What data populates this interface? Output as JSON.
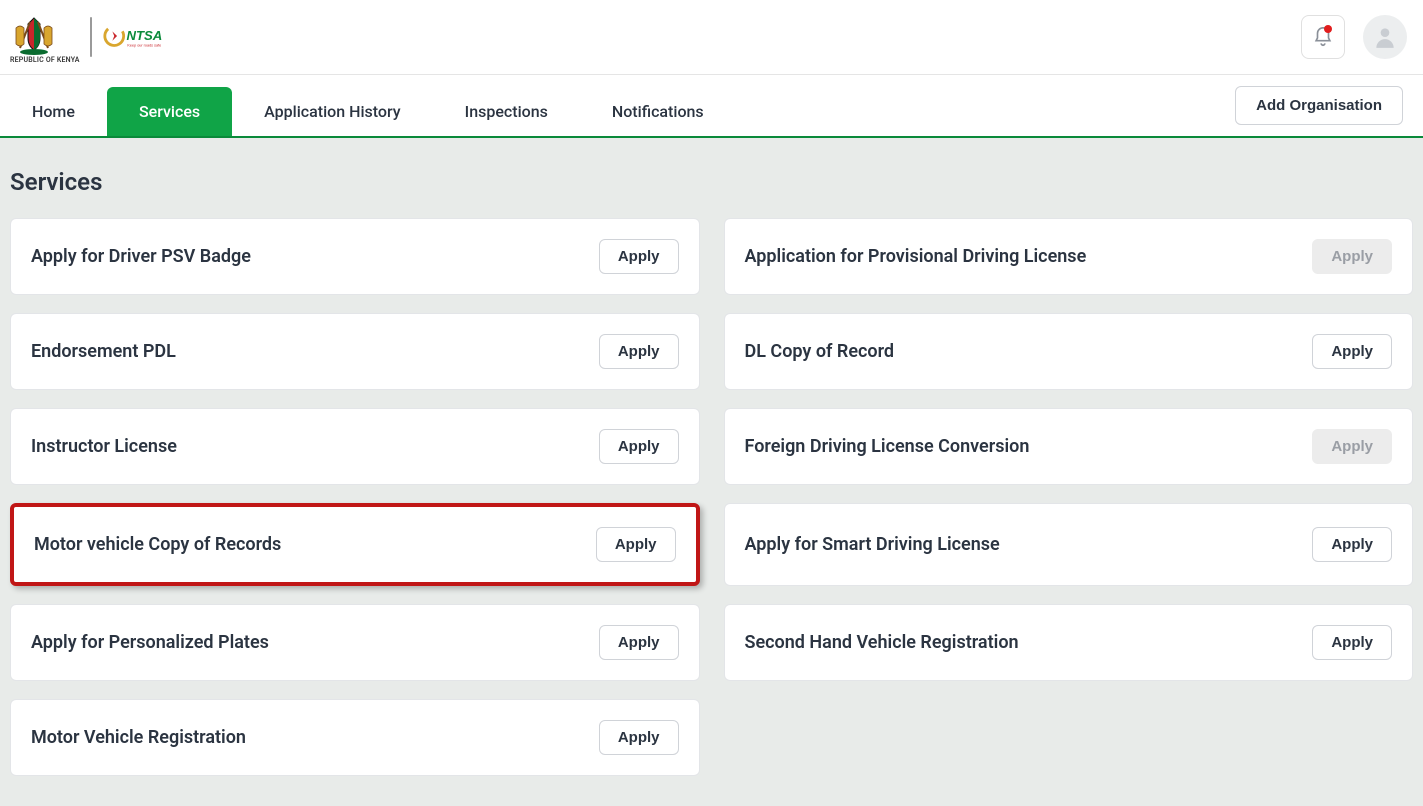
{
  "header": {
    "brand_label": "REPUBLIC OF KENYA",
    "ntsa_tagline": "Keep our roads safe"
  },
  "nav": {
    "tabs": [
      {
        "label": "Home",
        "active": false
      },
      {
        "label": "Services",
        "active": true
      },
      {
        "label": "Application History",
        "active": false
      },
      {
        "label": "Inspections",
        "active": false
      },
      {
        "label": "Notifications",
        "active": false
      }
    ],
    "add_org_label": "Add Organisation"
  },
  "page": {
    "title": "Services",
    "apply_label": "Apply",
    "services_left": [
      {
        "title": "Apply for Driver PSV Badge",
        "enabled": true,
        "highlighted": false
      },
      {
        "title": "Endorsement PDL",
        "enabled": true,
        "highlighted": false
      },
      {
        "title": "Instructor License",
        "enabled": true,
        "highlighted": false
      },
      {
        "title": "Motor vehicle Copy of Records",
        "enabled": true,
        "highlighted": true
      },
      {
        "title": "Apply for Personalized Plates",
        "enabled": true,
        "highlighted": false
      },
      {
        "title": "Motor Vehicle Registration",
        "enabled": true,
        "highlighted": false
      }
    ],
    "services_right": [
      {
        "title": "Application for Provisional Driving License",
        "enabled": false,
        "highlighted": false
      },
      {
        "title": "DL Copy of Record",
        "enabled": true,
        "highlighted": false
      },
      {
        "title": "Foreign Driving License Conversion",
        "enabled": false,
        "highlighted": false
      },
      {
        "title": "Apply for Smart Driving License",
        "enabled": true,
        "highlighted": false
      },
      {
        "title": "Second Hand Vehicle Registration",
        "enabled": true,
        "highlighted": false
      }
    ]
  },
  "colors": {
    "accent_green": "#10a447",
    "nav_border": "#0a8a3a",
    "highlight_red": "#c01616",
    "body_bg": "#e8ebe9",
    "card_bg": "#ffffff",
    "text": "#2b3441",
    "disabled_bg": "#ececec",
    "disabled_text": "#9a9ea5"
  }
}
